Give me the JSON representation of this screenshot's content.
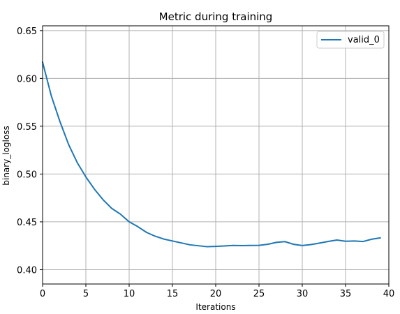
{
  "chart_data": {
    "type": "line",
    "title": "Metric during training",
    "xlabel": "Iterations",
    "ylabel": "binary_logloss",
    "xlim": [
      0,
      40
    ],
    "ylim": [
      0.385,
      0.655
    ],
    "grid": true,
    "legend_position": "top-right",
    "x_ticks": [
      0,
      5,
      10,
      15,
      20,
      25,
      30,
      35,
      40
    ],
    "x_tick_labels": [
      "0",
      "5",
      "10",
      "15",
      "20",
      "25",
      "30",
      "35",
      "40"
    ],
    "y_ticks": [
      0.4,
      0.45,
      0.5,
      0.55,
      0.6,
      0.65
    ],
    "y_tick_labels": [
      "0.40",
      "0.45",
      "0.50",
      "0.55",
      "0.60",
      "0.65"
    ],
    "series": [
      {
        "name": "valid_0",
        "color": "#1f77b4",
        "x": [
          0,
          1,
          2,
          3,
          4,
          5,
          6,
          7,
          8,
          9,
          10,
          11,
          12,
          13,
          14,
          15,
          16,
          17,
          18,
          19,
          20,
          21,
          22,
          23,
          24,
          25,
          26,
          27,
          28,
          29,
          30,
          31,
          32,
          33,
          34,
          35,
          36,
          37,
          38,
          39
        ],
        "values": [
          0.617,
          0.582,
          0.555,
          0.531,
          0.512,
          0.497,
          0.484,
          0.473,
          0.464,
          0.458,
          0.45,
          0.445,
          0.439,
          0.435,
          0.432,
          0.43,
          0.428,
          0.426,
          0.425,
          0.424,
          0.4243,
          0.4248,
          0.4253,
          0.4251,
          0.4253,
          0.4254,
          0.4265,
          0.4285,
          0.4293,
          0.4265,
          0.4252,
          0.4262,
          0.4278,
          0.4295,
          0.431,
          0.4297,
          0.43,
          0.4294,
          0.4318,
          0.4332
        ]
      }
    ]
  }
}
